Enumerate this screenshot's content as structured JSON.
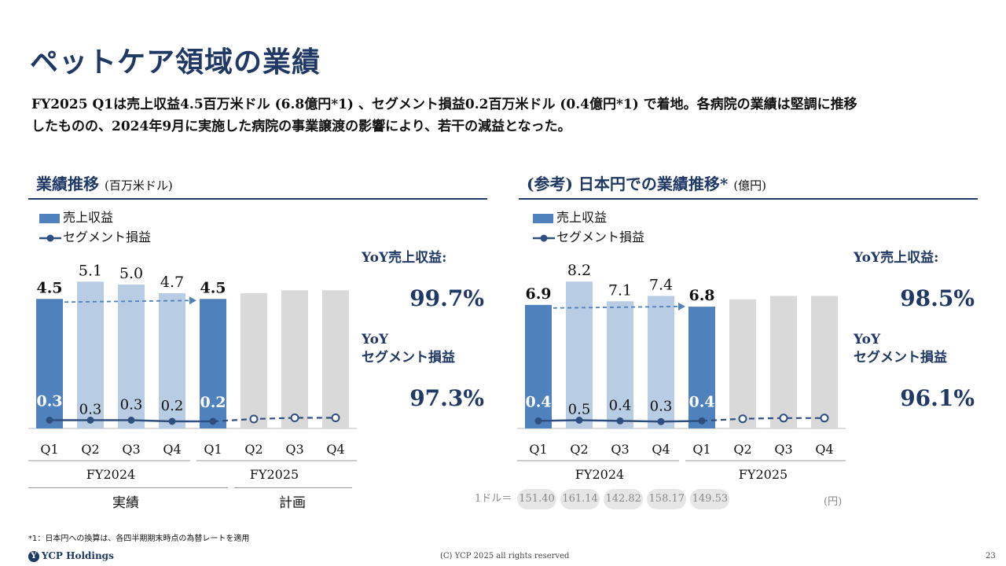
{
  "page": {
    "title": "ペットケア領域の業績",
    "summary_line1": "FY2025 Q1は売上収益4.5百万米ドル (6.8億円*1) 、セグメント損益0.2百万米ドル (0.4億円*1) で着地。各病院の業績は堅調に推移",
    "summary_line2": "したものの、2024年9月に実施した病院の事業譲渡の影響により、若干の減益となった。",
    "footnote": "*1：日本円への換算は、各四半期期末時点の為替レートを適用",
    "logo_text": "YCP Holdings",
    "copyright": "(C) YCP 2025 all rights reserved",
    "page_number": "23"
  },
  "left_panel": {
    "heading": "業績推移",
    "unit": "(百万米ドル)",
    "legend_revenue": "売上収益",
    "legend_segment": "セグメント損益",
    "yoy_revenue_label": "YoY売上収益:",
    "yoy_revenue_value": "99.7%",
    "yoy_segment_label_1": "YoY",
    "yoy_segment_label_2": "セグメント損益",
    "yoy_segment_value": "97.3%",
    "row_actual": "実績",
    "row_plan": "計画"
  },
  "right_panel": {
    "heading": "(参考) 日本円での業績推移*",
    "unit": "(億円)",
    "legend_revenue": "売上収益",
    "legend_segment": "セグメント損益",
    "yoy_revenue_label": "YoY売上収益:",
    "yoy_revenue_value": "98.5%",
    "yoy_segment_label_1": "YoY",
    "yoy_segment_label_2": "セグメント損益",
    "yoy_segment_value": "96.1%",
    "fx_label": "1ドル＝",
    "fx_rates": [
      "151.40",
      "161.14",
      "142.82",
      "158.17",
      "149.53"
    ],
    "fx_unit": "(円)"
  },
  "chart_data": [
    {
      "type": "bar",
      "categories": [
        "Q1",
        "Q2",
        "Q3",
        "Q4",
        "Q1",
        "Q2",
        "Q3",
        "Q4"
      ],
      "groups": [
        "FY2024",
        "FY2025"
      ],
      "series": [
        {
          "name": "売上収益",
          "values": [
            4.5,
            5.1,
            5.0,
            4.7,
            4.5,
            4.7,
            4.8,
            4.8
          ],
          "labels": [
            "4.5",
            "5.1",
            "5.0",
            "4.7",
            "4.5",
            "",
            "",
            ""
          ]
        },
        {
          "name": "セグメント損益",
          "values": [
            0.3,
            0.3,
            0.3,
            0.2,
            0.2,
            0.4,
            0.5,
            0.5
          ],
          "labels": [
            "0.3",
            "0.3",
            "0.3",
            "0.2",
            "0.2",
            "",
            "",
            ""
          ]
        }
      ],
      "ylim": [
        0,
        5.6
      ]
    },
    {
      "type": "bar",
      "categories": [
        "Q1",
        "Q2",
        "Q3",
        "Q4",
        "Q1",
        "Q2",
        "Q3",
        "Q4"
      ],
      "groups": [
        "FY2024",
        "FY2025"
      ],
      "series": [
        {
          "name": "売上収益",
          "values": [
            6.9,
            8.2,
            7.1,
            7.4,
            6.8,
            7.2,
            7.4,
            7.4
          ],
          "labels": [
            "6.9",
            "8.2",
            "7.1",
            "7.4",
            "6.8",
            "",
            "",
            ""
          ]
        },
        {
          "name": "セグメント損益",
          "values": [
            0.4,
            0.5,
            0.4,
            0.3,
            0.4,
            0.7,
            0.8,
            0.8
          ],
          "labels": [
            "0.4",
            "0.5",
            "0.4",
            "0.3",
            "0.4",
            "",
            "",
            ""
          ]
        }
      ],
      "ylim": [
        0,
        9.0
      ]
    }
  ],
  "colors": {
    "navy": "#1F3864",
    "actual_bar": "#4F81BD",
    "prior_bar": "#B8CCE4",
    "plan_bar": "#D9D9D9",
    "line": "#2F4F7F"
  }
}
